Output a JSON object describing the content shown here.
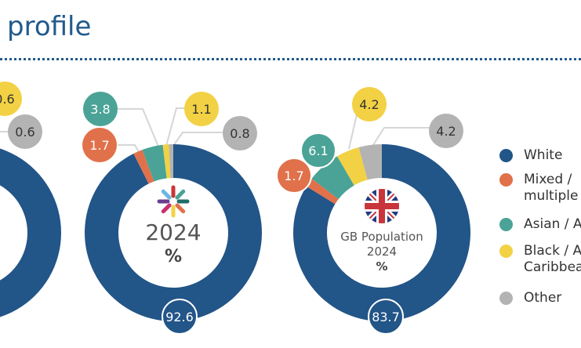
{
  "header": {
    "title": "profile"
  },
  "colors": {
    "White": "#225588",
    "Mixed": "#e0714a",
    "Asian": "#4aa396",
    "Black": "#f2d144",
    "Other": "#b3b3b3",
    "title": "#235a8c"
  },
  "chart_data": [
    {
      "type": "pie",
      "variant": "donut",
      "partial": true,
      "categories": [
        "Black",
        "Other"
      ],
      "values": [
        0.6,
        0.6
      ],
      "labels": [
        "0.6",
        "0.6"
      ]
    },
    {
      "type": "pie",
      "variant": "donut",
      "center_text": "2024",
      "center_unit": "%",
      "center_icon": "star-logo-icon",
      "categories": [
        "White",
        "Mixed",
        "Asian",
        "Black",
        "Other"
      ],
      "values": [
        92.6,
        1.7,
        3.8,
        1.1,
        0.8
      ],
      "labels": [
        "92.6",
        "1.7",
        "3.8",
        "1.1",
        "0.8"
      ]
    },
    {
      "type": "pie",
      "variant": "donut",
      "center_text": "GB Population",
      "center_year": "2024",
      "center_unit": "%",
      "center_icon": "uk-flag-icon",
      "categories": [
        "White",
        "Mixed",
        "Asian",
        "Black",
        "Other"
      ],
      "values": [
        83.7,
        1.7,
        6.1,
        4.2,
        4.2
      ],
      "labels": [
        "83.7",
        "1.7",
        "6.1",
        "4.2",
        "4.2"
      ]
    }
  ],
  "legend": {
    "placement": "right",
    "items": [
      {
        "key": "White",
        "lines": [
          "White"
        ]
      },
      {
        "key": "Mixed",
        "lines": [
          "Mixed /",
          "multiple"
        ]
      },
      {
        "key": "Asian",
        "lines": [
          "Asian / A"
        ]
      },
      {
        "key": "Black",
        "lines": [
          "Black / A",
          "Caribbea"
        ]
      },
      {
        "key": "Other",
        "lines": [
          "Other"
        ]
      }
    ]
  }
}
